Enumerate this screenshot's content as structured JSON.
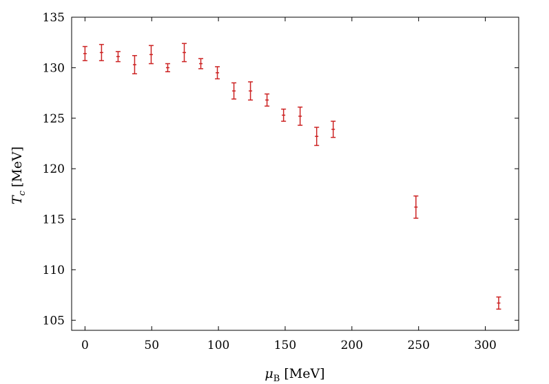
{
  "chart_data": {
    "type": "scatter",
    "title": "",
    "xlabel": {
      "symbol": "μ",
      "subscript": "B",
      "unit": "[MeV]"
    },
    "ylabel": {
      "symbol": "T",
      "subscript": "c",
      "unit": "[MeV]"
    },
    "xlim": [
      -10,
      325
    ],
    "ylim": [
      104,
      135
    ],
    "xticks": [
      0,
      50,
      100,
      150,
      200,
      250,
      300
    ],
    "yticks": [
      105,
      110,
      115,
      120,
      125,
      130,
      135
    ],
    "grid": false,
    "legend": "none",
    "series": [
      {
        "color": "#cc2222",
        "marker": "errorbar",
        "points": [
          {
            "x": 0,
            "y": 131.4,
            "err": 0.7
          },
          {
            "x": 12.4,
            "y": 131.5,
            "err": 0.8
          },
          {
            "x": 24.8,
            "y": 131.1,
            "err": 0.5
          },
          {
            "x": 37.2,
            "y": 130.3,
            "err": 0.9
          },
          {
            "x": 49.6,
            "y": 131.3,
            "err": 0.9
          },
          {
            "x": 62,
            "y": 130.0,
            "err": 0.4
          },
          {
            "x": 74.4,
            "y": 131.5,
            "err": 0.9
          },
          {
            "x": 86.8,
            "y": 130.4,
            "err": 0.5
          },
          {
            "x": 99.2,
            "y": 129.5,
            "err": 0.6
          },
          {
            "x": 111.6,
            "y": 127.7,
            "err": 0.8
          },
          {
            "x": 124,
            "y": 127.7,
            "err": 0.9
          },
          {
            "x": 136.4,
            "y": 126.8,
            "err": 0.6
          },
          {
            "x": 148.8,
            "y": 125.3,
            "err": 0.6
          },
          {
            "x": 161.2,
            "y": 125.2,
            "err": 0.9
          },
          {
            "x": 173.6,
            "y": 123.2,
            "err": 0.9
          },
          {
            "x": 186,
            "y": 123.9,
            "err": 0.8
          },
          {
            "x": 248,
            "y": 116.2,
            "err": 1.1
          },
          {
            "x": 310,
            "y": 106.7,
            "err": 0.6
          }
        ]
      }
    ]
  }
}
